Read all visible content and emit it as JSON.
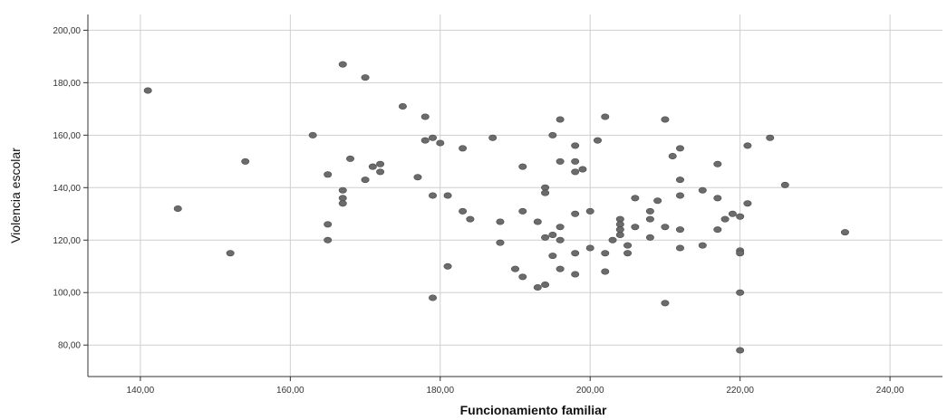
{
  "chart_data": {
    "type": "scatter",
    "xlabel": "Funcionamiento familiar",
    "ylabel": "Violencia escolar",
    "xlim": [
      133,
      247
    ],
    "ylim": [
      68,
      206
    ],
    "x_ticks": [
      140,
      160,
      180,
      200,
      220,
      240
    ],
    "y_ticks": [
      80,
      100,
      120,
      140,
      160,
      180,
      200
    ],
    "x_tick_labels": [
      "140,00",
      "160,00",
      "180,00",
      "200,00",
      "220,00",
      "240,00"
    ],
    "y_tick_labels": [
      "80,00",
      "100,00",
      "120,00",
      "140,00",
      "160,00",
      "180,00",
      "200,00"
    ],
    "grid": true,
    "colors": {
      "point": "#6b6b6b",
      "grid": "#cfcfcf",
      "axis": "#333333"
    },
    "points": [
      [
        141,
        177
      ],
      [
        145,
        132
      ],
      [
        152,
        115
      ],
      [
        154,
        150
      ],
      [
        163,
        160
      ],
      [
        165,
        145
      ],
      [
        165,
        126
      ],
      [
        165,
        120
      ],
      [
        167,
        187
      ],
      [
        167,
        139
      ],
      [
        167,
        136
      ],
      [
        167,
        134
      ],
      [
        168,
        151
      ],
      [
        170,
        182
      ],
      [
        170,
        143
      ],
      [
        171,
        148
      ],
      [
        172,
        149
      ],
      [
        172,
        146
      ],
      [
        175,
        171
      ],
      [
        177,
        144
      ],
      [
        178,
        167
      ],
      [
        178,
        158
      ],
      [
        179,
        159
      ],
      [
        179,
        137
      ],
      [
        179,
        98
      ],
      [
        180,
        157
      ],
      [
        181,
        137
      ],
      [
        181,
        110
      ],
      [
        183,
        155
      ],
      [
        183,
        131
      ],
      [
        184,
        128
      ],
      [
        187,
        159
      ],
      [
        188,
        127
      ],
      [
        188,
        119
      ],
      [
        190,
        109
      ],
      [
        191,
        148
      ],
      [
        191,
        131
      ],
      [
        191,
        106
      ],
      [
        193,
        127
      ],
      [
        193,
        102
      ],
      [
        194,
        140
      ],
      [
        194,
        138
      ],
      [
        194,
        121
      ],
      [
        194,
        103
      ],
      [
        195,
        160
      ],
      [
        195,
        122
      ],
      [
        195,
        114
      ],
      [
        196,
        166
      ],
      [
        196,
        150
      ],
      [
        196,
        125
      ],
      [
        196,
        120
      ],
      [
        196,
        109
      ],
      [
        198,
        156
      ],
      [
        198,
        150
      ],
      [
        198,
        146
      ],
      [
        198,
        130
      ],
      [
        198,
        115
      ],
      [
        198,
        107
      ],
      [
        199,
        147
      ],
      [
        200,
        131
      ],
      [
        200,
        117
      ],
      [
        201,
        158
      ],
      [
        202,
        167
      ],
      [
        202,
        115
      ],
      [
        202,
        108
      ],
      [
        203,
        120
      ],
      [
        204,
        128
      ],
      [
        204,
        126
      ],
      [
        204,
        124
      ],
      [
        204,
        122
      ],
      [
        205,
        118
      ],
      [
        205,
        115
      ],
      [
        206,
        136
      ],
      [
        206,
        125
      ],
      [
        208,
        131
      ],
      [
        208,
        128
      ],
      [
        208,
        121
      ],
      [
        209,
        135
      ],
      [
        210,
        166
      ],
      [
        210,
        125
      ],
      [
        210,
        96
      ],
      [
        211,
        152
      ],
      [
        212,
        155
      ],
      [
        212,
        143
      ],
      [
        212,
        137
      ],
      [
        212,
        124
      ],
      [
        212,
        117
      ],
      [
        215,
        139
      ],
      [
        215,
        118
      ],
      [
        217,
        149
      ],
      [
        217,
        136
      ],
      [
        217,
        124
      ],
      [
        218,
        128
      ],
      [
        219,
        130
      ],
      [
        220,
        129
      ],
      [
        220,
        116
      ],
      [
        220,
        115
      ],
      [
        220,
        100
      ],
      [
        220,
        78
      ],
      [
        221,
        156
      ],
      [
        221,
        134
      ],
      [
        224,
        159
      ],
      [
        226,
        141
      ],
      [
        234,
        123
      ]
    ]
  }
}
